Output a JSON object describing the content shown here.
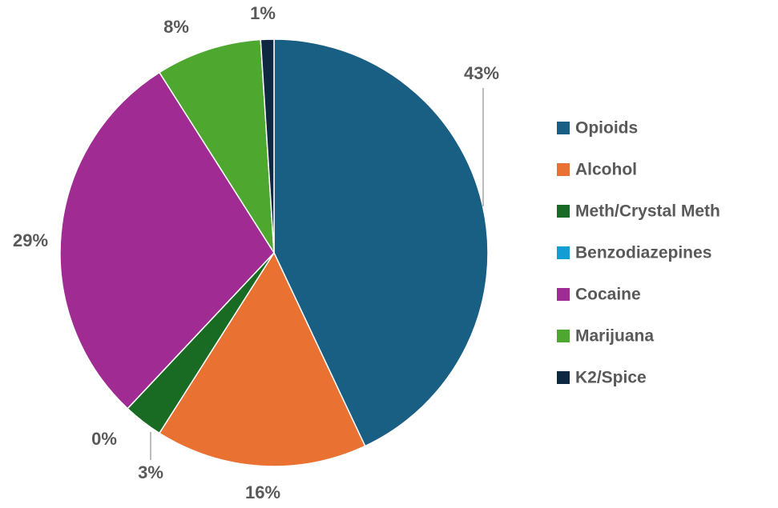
{
  "chart_data": {
    "type": "pie",
    "categories": [
      "Opioids",
      "Alcohol",
      "Meth/Crystal Meth",
      "Benzodiazepines",
      "Cocaine",
      "Marijuana",
      "K2/Spice"
    ],
    "values": [
      43,
      16,
      3,
      0,
      29,
      8,
      1
    ],
    "value_labels": [
      "43%",
      "16%",
      "3%",
      "0%",
      "29%",
      "8%",
      "1%"
    ],
    "colors": [
      "#195e83",
      "#e97132",
      "#196b24",
      "#0f9ed5",
      "#a02b93",
      "#4ea72e",
      "#0e2841"
    ],
    "legend": "right"
  }
}
